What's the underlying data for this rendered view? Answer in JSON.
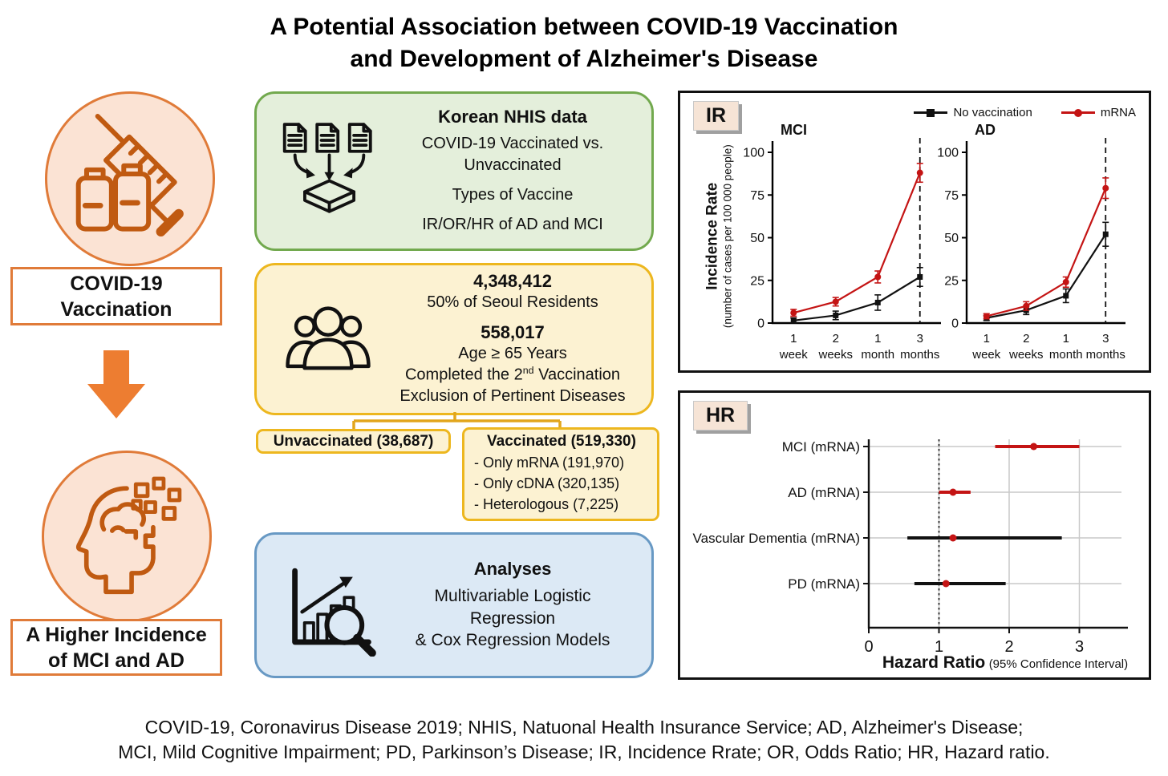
{
  "title": {
    "line1": "A Potential Association between COVID-19 Vaccination",
    "line2": "and Development of Alzheimer's Disease"
  },
  "left_flow": {
    "cause_line1": "COVID-19",
    "cause_line2": "Vaccination",
    "effect_line1": "A Higher Incidence",
    "effect_line2": "of MCI and AD"
  },
  "middle": {
    "nhis": {
      "title": "Korean NHIS data",
      "line1": "COVID-19 Vaccinated vs.",
      "line2": "Unvaccinated",
      "line3": "Types of Vaccine",
      "line4": "IR/OR/HR of AD and MCI"
    },
    "cohort": {
      "n_total": "4,348,412",
      "total_desc": "50% of Seoul Residents",
      "n_elderly": "558,017",
      "age": "Age ≥ 65 Years",
      "vacc_pre": "Completed the 2",
      "vacc_sup": "nd",
      "vacc_post": " Vaccination",
      "exclusion": "Exclusion of Pertinent Diseases"
    },
    "unvaccinated_label": "Unvaccinated (38,687)",
    "vaccinated": {
      "title": "Vaccinated (519,330)",
      "items": [
        "- Only mRNA (191,970)",
        "- Only cDNA (320,135)",
        "- Heterologous (7,225)"
      ]
    },
    "analyses": {
      "title": "Analyses",
      "line1": "Multivariable Logistic",
      "line2": "Regression",
      "line3": "& Cox Regression Models"
    }
  },
  "panels": {
    "ir_badge": "IR",
    "hr_badge": "HR"
  },
  "chart_data": [
    {
      "id": "ir_mci",
      "type": "line",
      "title": "MCI",
      "ylabel": {
        "bold": "Incidence Rate",
        "sub": "(number of cases per 100 000 people)"
      },
      "ylim": [
        0,
        100
      ],
      "yticks": [
        0,
        25,
        50,
        75,
        100
      ],
      "x_categories": [
        [
          "1",
          "week"
        ],
        [
          "2",
          "weeks"
        ],
        [
          "1",
          "month"
        ],
        [
          "3",
          "months"
        ]
      ],
      "dashed_line_at_category": "3 months",
      "legend_position": "top-right",
      "series": [
        {
          "name": "No vaccination",
          "color": "#111111",
          "marker": "square",
          "values": [
            1.5,
            4.5,
            12,
            27
          ],
          "err": [
            1.5,
            2.5,
            4.5,
            5.5
          ]
        },
        {
          "name": "mRNA",
          "color": "#c41414",
          "marker": "circle",
          "values": [
            6,
            12.5,
            27,
            88
          ],
          "err": [
            2,
            2.5,
            3.5,
            5.5
          ]
        }
      ]
    },
    {
      "id": "ir_ad",
      "type": "line",
      "title": "AD",
      "ylim": [
        0,
        100
      ],
      "yticks": [
        0,
        25,
        50,
        75,
        100
      ],
      "x_categories": [
        [
          "1",
          "week"
        ],
        [
          "2",
          "weeks"
        ],
        [
          "1",
          "month"
        ],
        [
          "3",
          "months"
        ]
      ],
      "dashed_line_at_category": "3 months",
      "series": [
        {
          "name": "No vaccination",
          "color": "#111111",
          "marker": "square",
          "values": [
            3,
            7.5,
            16,
            52
          ],
          "err": [
            1.5,
            2.5,
            4,
            7
          ]
        },
        {
          "name": "mRNA",
          "color": "#c41414",
          "marker": "circle",
          "values": [
            4,
            10,
            24,
            79
          ],
          "err": [
            1.5,
            2.5,
            3,
            6
          ]
        }
      ]
    },
    {
      "id": "hr_forest",
      "type": "forest",
      "xlabel_bold": "Hazard Ratio",
      "xlabel_normal": "(95% Confidence Interval)",
      "xlim": [
        0,
        3.6
      ],
      "xticks": [
        0,
        1,
        2,
        3
      ],
      "ref_line_x": 1,
      "marker_color": "#c41414",
      "rows": [
        {
          "label": "MCI (mRNA)",
          "estimate": 2.35,
          "ci_low": 1.8,
          "ci_high": 3.0,
          "ci_color": "#c41414"
        },
        {
          "label": "AD (mRNA)",
          "estimate": 1.2,
          "ci_low": 1.0,
          "ci_high": 1.45,
          "ci_color": "#c41414"
        },
        {
          "label": "Vascular Dementia (mRNA)",
          "estimate": 1.2,
          "ci_low": 0.55,
          "ci_high": 2.75,
          "ci_color": "#111111"
        },
        {
          "label": "PD (mRNA)",
          "estimate": 1.1,
          "ci_low": 0.65,
          "ci_high": 1.95,
          "ci_color": "#111111"
        }
      ]
    }
  ],
  "footnote": {
    "line1": "COVID-19, Coronavirus Disease 2019; NHIS, Natuonal Health Insurance Service; AD, Alzheimer's Disease;",
    "line2": "MCI, Mild Cognitive Impairment; PD, Parkinson’s Disease; IR, Incidence Rrate; OR, Odds Ratio; HR, Hazard ratio."
  }
}
